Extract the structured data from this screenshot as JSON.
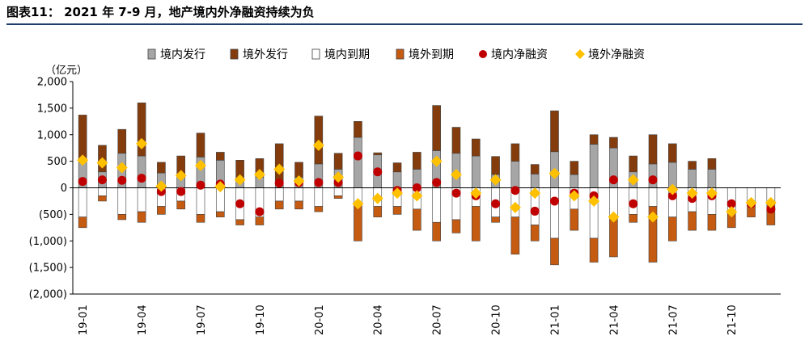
{
  "title": "图表11： 2021 年 7-9 月，地产境内外净融资持续为负",
  "colors": {
    "domestic_issue": "#a6a6a6",
    "foreign_issue": "#843c0c",
    "domestic_maturity": "#ffffff",
    "foreign_maturity": "#c55a11",
    "domestic_net": "#c00000",
    "foreign_net": "#ffc000",
    "title_rule": "#1f3d6b"
  },
  "chart_data": {
    "type": "bar",
    "stacked": true,
    "unit_label": "（亿元）",
    "ylim": [
      -2000,
      2000
    ],
    "yticks": [
      -2000,
      -1500,
      -1000,
      -500,
      0,
      500,
      1000,
      1500,
      2000
    ],
    "ytick_labels": [
      "(2,000)",
      "(1,500)",
      "(1,000)",
      "(500)",
      "0",
      "500",
      "1,000",
      "1,500",
      "2,000"
    ],
    "categories": [
      "19-01",
      "19-02",
      "19-03",
      "19-04",
      "19-05",
      "19-06",
      "19-07",
      "19-08",
      "19-09",
      "19-10",
      "19-11",
      "19-12",
      "20-01",
      "20-02",
      "20-03",
      "20-04",
      "20-05",
      "20-06",
      "20-07",
      "20-08",
      "20-09",
      "20-10",
      "20-11",
      "20-12",
      "21-01",
      "21-02",
      "21-03",
      "21-04",
      "21-05",
      "21-06",
      "21-07",
      "21-08",
      "21-09",
      "21-10",
      "21-11",
      "21-12"
    ],
    "xtick_labels": [
      "19-01",
      "",
      "",
      "19-04",
      "",
      "",
      "19-07",
      "",
      "",
      "19-10",
      "",
      "",
      "20-01",
      "",
      "",
      "20-04",
      "",
      "",
      "20-07",
      "",
      "",
      "20-10",
      "",
      "",
      "21-01",
      "",
      "",
      "21-04",
      "",
      "",
      "21-07",
      "",
      "",
      "21-10",
      "",
      ""
    ],
    "legend": [
      "境内发行",
      "境外发行",
      "境内到期",
      "境外到期",
      "境内净融资",
      "境外净融资"
    ],
    "legend_position": "top",
    "series": [
      {
        "name": "境内发行",
        "kind": "bar",
        "values": [
          550,
          300,
          650,
          600,
          280,
          220,
          580,
          520,
          200,
          200,
          100,
          200,
          450,
          350,
          950,
          620,
          300,
          350,
          700,
          650,
          600,
          250,
          500,
          260,
          680,
          250,
          820,
          750,
          300,
          450,
          480,
          350,
          350,
          0,
          0,
          0
        ]
      },
      {
        "name": "境外发行",
        "kind": "bar",
        "values": [
          820,
          500,
          450,
          1000,
          200,
          380,
          450,
          150,
          320,
          350,
          730,
          280,
          900,
          300,
          300,
          40,
          170,
          320,
          850,
          490,
          320,
          340,
          330,
          180,
          770,
          250,
          180,
          200,
          300,
          550,
          350,
          150,
          200,
          0,
          0,
          0
        ]
      },
      {
        "name": "境内到期",
        "kind": "bar",
        "values": [
          -550,
          -150,
          -500,
          -450,
          -350,
          -250,
          -500,
          -450,
          -600,
          -550,
          -250,
          -250,
          -350,
          -150,
          -300,
          -350,
          -350,
          -400,
          -650,
          -600,
          -350,
          -550,
          -550,
          -700,
          -950,
          -400,
          -950,
          -550,
          -500,
          -350,
          -550,
          -450,
          -500,
          -450,
          -250,
          -300
        ]
      },
      {
        "name": "境外到期",
        "kind": "bar",
        "values": [
          -200,
          -100,
          -100,
          -200,
          -150,
          -150,
          -150,
          -100,
          -100,
          -150,
          -150,
          -150,
          -100,
          -50,
          -700,
          -200,
          -150,
          -400,
          -350,
          -250,
          -650,
          -100,
          -700,
          -300,
          -500,
          -400,
          -450,
          -750,
          -150,
          -1050,
          -450,
          -350,
          -300,
          -300,
          -300,
          -400
        ]
      },
      {
        "name": "境内净融资",
        "kind": "scatter",
        "values": [
          120,
          150,
          140,
          180,
          -70,
          -70,
          50,
          70,
          -300,
          -450,
          90,
          100,
          100,
          100,
          600,
          300,
          -50,
          0,
          100,
          -100,
          -150,
          -300,
          -50,
          -440,
          -250,
          -100,
          -150,
          150,
          -300,
          150,
          -150,
          -200,
          -150,
          -300,
          -300,
          -400
        ]
      },
      {
        "name": "境外净融资",
        "kind": "scatter",
        "values": [
          520,
          470,
          380,
          830,
          30,
          230,
          420,
          20,
          150,
          250,
          350,
          130,
          800,
          200,
          -300,
          -200,
          -100,
          -150,
          500,
          250,
          -100,
          150,
          -370,
          -100,
          270,
          -150,
          -250,
          -550,
          150,
          -550,
          -30,
          -100,
          -100,
          -450,
          -280,
          -280
        ]
      }
    ]
  }
}
